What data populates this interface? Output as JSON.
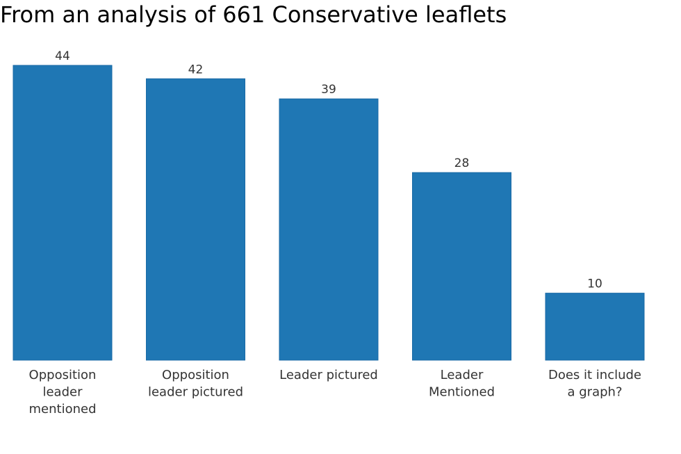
{
  "chart_data": {
    "type": "bar",
    "title": "From an analysis of 661 Conservative leaflets",
    "categories": [
      [
        "Opposition",
        "leader",
        "mentioned"
      ],
      [
        "Opposition",
        "leader pictured"
      ],
      [
        "Leader pictured"
      ],
      [
        "Leader",
        "Mentioned"
      ],
      [
        "Does it include",
        "a graph?"
      ]
    ],
    "values": [
      44,
      42,
      39,
      28,
      10
    ],
    "data_labels": [
      "44",
      "42",
      "39",
      "28",
      "10"
    ],
    "ylim": [
      0,
      44
    ],
    "xlabel": "",
    "ylabel": "",
    "grid": false,
    "bar_color": "#1f77b4"
  }
}
